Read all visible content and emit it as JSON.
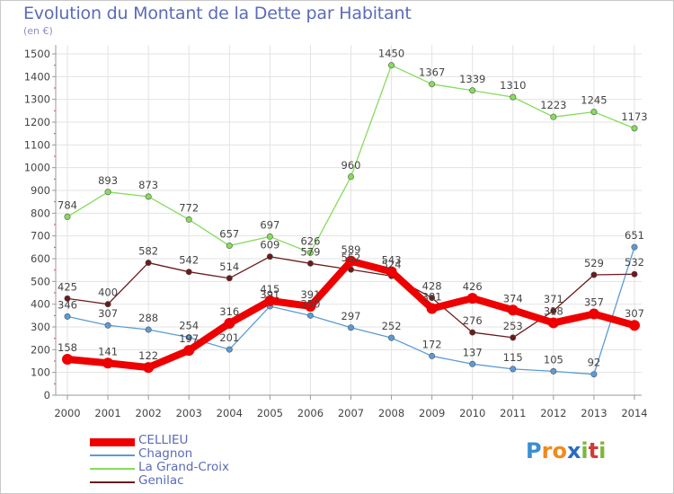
{
  "title": "Evolution du Montant de la Dette par Habitant",
  "subtitle": "(en €)",
  "logo": {
    "text": "Proxiti",
    "letters": [
      "P",
      "r",
      "o",
      "x",
      "i",
      "t",
      "i"
    ],
    "colors": [
      "#3a8fd0",
      "#f08a1c",
      "#f08a1c",
      "#2b6cc0",
      "#7ab83a",
      "#d23a3a",
      "#7ab83a"
    ]
  },
  "chart_data": {
    "type": "line",
    "categories": [
      "2000",
      "2001",
      "2002",
      "2003",
      "2004",
      "2005",
      "2006",
      "2007",
      "2008",
      "2009",
      "2010",
      "2011",
      "2012",
      "2013",
      "2014"
    ],
    "ylim": [
      0,
      1500
    ],
    "yticks": [
      0,
      100,
      200,
      300,
      400,
      500,
      600,
      700,
      800,
      900,
      1000,
      1100,
      1200,
      1300,
      1400,
      1500
    ],
    "grid": true,
    "legend": "bottom-left",
    "series": [
      {
        "name": "CELLIEU",
        "color": "#ee0000",
        "values": [
          158,
          141,
          122,
          197,
          316,
          415,
          391,
          589,
          543,
          381,
          426,
          374,
          318,
          357,
          307
        ],
        "labels": [
          "158",
          "141",
          "122",
          "197",
          "316",
          "415",
          "391",
          "589",
          "543",
          "381",
          "426",
          "374",
          "318",
          "357",
          "307"
        ]
      },
      {
        "name": "Chagnon",
        "color": "#5b9bd5",
        "values": [
          346,
          307,
          288,
          254,
          201,
          391,
          350,
          297,
          252,
          172,
          137,
          115,
          105,
          92,
          651
        ],
        "labels": [
          "346",
          "307",
          "288",
          "254",
          "201",
          "391",
          "350",
          "297",
          "252",
          "172",
          "137",
          "115",
          "105",
          "92",
          "651"
        ]
      },
      {
        "name": "La Grand-Croix",
        "color": "#7ed957",
        "values": [
          784,
          893,
          873,
          772,
          657,
          697,
          626,
          960,
          1450,
          1367,
          1339,
          1310,
          1223,
          1245,
          1173
        ],
        "labels": [
          "784",
          "893",
          "873",
          "772",
          "657",
          "697",
          "626",
          "960",
          "1450",
          "1367",
          "1339",
          "1310",
          "1223",
          "1245",
          "1173"
        ]
      },
      {
        "name": "Genilac",
        "color": "#6b1a1a",
        "values": [
          425,
          400,
          582,
          542,
          514,
          609,
          579,
          552,
          524,
          428,
          276,
          253,
          371,
          529,
          532
        ],
        "labels": [
          "425",
          "400",
          "582",
          "542",
          "514",
          "609",
          "579",
          "552",
          "524",
          "428",
          "276",
          "253",
          "371",
          "529",
          "532"
        ]
      }
    ]
  }
}
